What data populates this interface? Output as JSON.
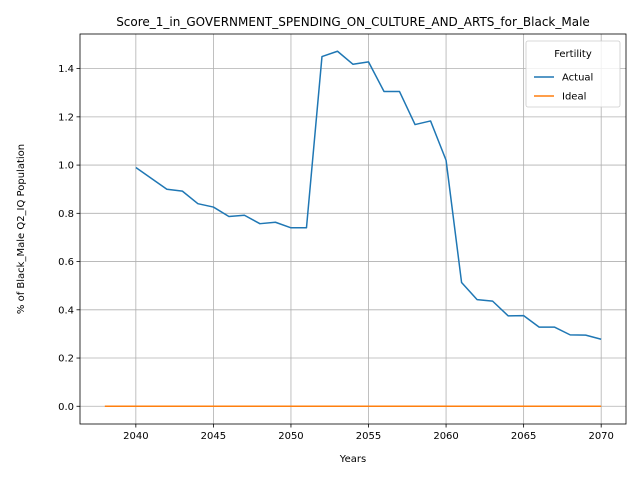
{
  "chart_data": {
    "type": "line",
    "title": "Score_1_in_GOVERNMENT_SPENDING_ON_CULTURE_AND_ARTS_for_Black_Male",
    "xlabel": "Years",
    "ylabel": "% of Black_Male Q2_IQ Population",
    "xlim": [
      2036.4,
      2071.6
    ],
    "ylim": [
      -0.0735,
      1.5435
    ],
    "xticks": [
      2040,
      2045,
      2050,
      2055,
      2060,
      2065,
      2070
    ],
    "xtick_labels": [
      "2040",
      "2045",
      "2050",
      "2055",
      "2060",
      "2065",
      "2070"
    ],
    "yticks": [
      0.0,
      0.2,
      0.4,
      0.6,
      0.8,
      1.0,
      1.2,
      1.4
    ],
    "ytick_labels": [
      "0.0",
      "0.2",
      "0.4",
      "0.6",
      "0.8",
      "1.0",
      "1.2",
      "1.4"
    ],
    "grid": true,
    "legend": {
      "title": "Fertility",
      "position": "top-right"
    },
    "series": [
      {
        "name": "Actual",
        "color": "#1f77b4",
        "x": [
          2040,
          2041,
          2042,
          2043,
          2044,
          2045,
          2046,
          2047,
          2048,
          2049,
          2050,
          2051,
          2052,
          2053,
          2054,
          2055,
          2056,
          2057,
          2058,
          2059,
          2060,
          2061,
          2062,
          2063,
          2064,
          2065,
          2066,
          2067,
          2068,
          2069,
          2070
        ],
        "values": [
          0.99,
          0.945,
          0.9,
          0.892,
          0.84,
          0.826,
          0.787,
          0.792,
          0.757,
          0.763,
          0.74,
          0.74,
          1.45,
          1.472,
          1.418,
          1.428,
          1.305,
          1.305,
          1.168,
          1.183,
          1.02,
          0.513,
          0.442,
          0.436,
          0.375,
          0.376,
          0.328,
          0.328,
          0.296,
          0.295,
          0.278
        ]
      },
      {
        "name": "Ideal",
        "color": "#ff7f0e",
        "x": [
          2038,
          2070
        ],
        "values": [
          0.0,
          0.0
        ]
      }
    ]
  }
}
